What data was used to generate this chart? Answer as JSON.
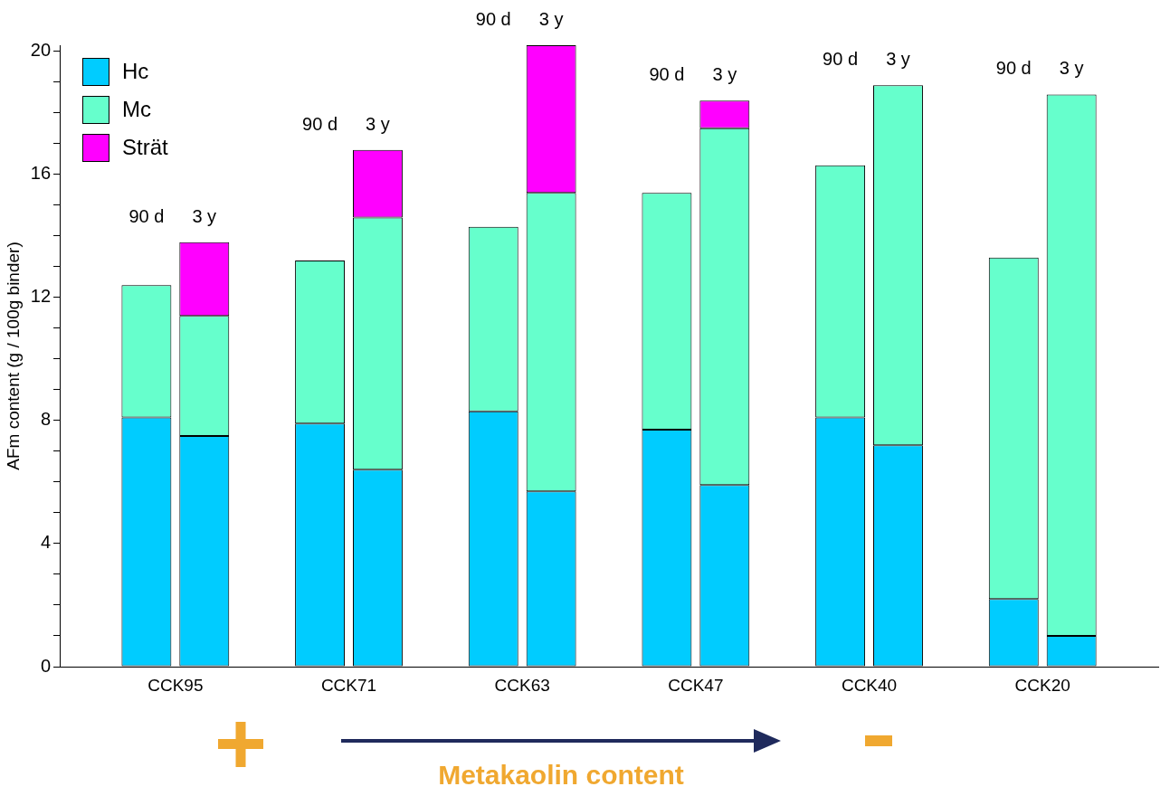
{
  "chart_data": {
    "type": "bar",
    "stacked": true,
    "ylabel": "AFm content (g / 100g binder)",
    "categories": [
      null,
      "90 d",
      "3 y",
      null,
      "90 d",
      "3 y",
      null,
      "90 d",
      "3 y",
      null,
      "90 d",
      "3 y",
      null,
      "90 d",
      "3 y",
      null,
      "90 d",
      "3 y",
      null
    ],
    "series": [
      {
        "name": "Hc",
        "color": "#00ccff",
        "values": [
          null,
          8.1,
          7.5,
          null,
          7.9,
          6.4,
          null,
          8.3,
          5.7,
          null,
          7.7,
          5.9,
          null,
          8.1,
          7.2,
          null,
          2.2,
          1.0,
          null
        ]
      },
      {
        "name": "Mc",
        "color": "#66ffcc",
        "values": [
          null,
          4.3,
          3.9,
          null,
          5.3,
          8.2,
          null,
          6.0,
          9.7,
          null,
          7.7,
          11.6,
          null,
          8.2,
          11.7,
          null,
          11.1,
          17.6,
          null
        ]
      },
      {
        "name": "Strät",
        "color": "#ff00ff",
        "values": [
          null,
          null,
          2.4,
          null,
          null,
          2.2,
          null,
          null,
          4.8,
          null,
          null,
          0.9,
          null,
          null,
          null,
          null,
          null,
          null,
          null
        ]
      }
    ],
    "ylim": [
      0,
      20.2
    ],
    "yticks": [
      0,
      {
        "value": 1,
        "label": null
      },
      {
        "value": 2,
        "label": null
      },
      {
        "value": 3,
        "label": null
      },
      4,
      {
        "value": 5,
        "label": null
      },
      {
        "value": 6,
        "label": null
      },
      {
        "value": 7,
        "label": null
      },
      8,
      {
        "value": 9,
        "label": null
      },
      {
        "value": 10,
        "label": null
      },
      {
        "value": 11,
        "label": null
      },
      12,
      {
        "value": 13,
        "label": null
      },
      {
        "value": 14,
        "label": null
      },
      {
        "value": 15,
        "label": null
      },
      16,
      {
        "value": 17,
        "label": null
      },
      {
        "value": 18,
        "label": null
      },
      {
        "value": 19,
        "label": null
      },
      20
    ],
    "legend": "top left",
    "grid": false,
    "annotations": [
      "CCK95",
      "CCK71",
      "CCK63",
      "CCK47",
      "CCK40",
      "CCK20",
      "Metakaolin content"
    ]
  }
}
